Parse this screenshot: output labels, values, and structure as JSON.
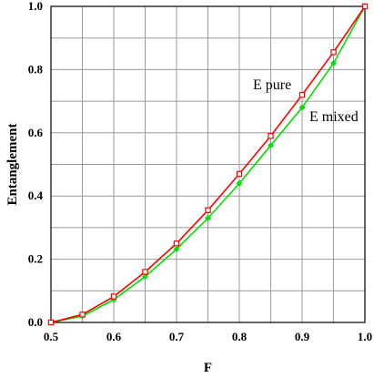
{
  "chart_data": {
    "type": "line",
    "xlabel": "F",
    "ylabel": "Entanglement",
    "xlim": [
      0.5,
      1.0
    ],
    "ylim": [
      0.0,
      1.0
    ],
    "x_ticks": [
      "0.5",
      "0.6",
      "0.7",
      "0.8",
      "0.9",
      "1.0"
    ],
    "y_ticks": [
      "0.0",
      "0.2",
      "0.4",
      "0.6",
      "0.8",
      "1.0"
    ],
    "grid": true,
    "x": [
      0.5,
      0.55,
      0.6,
      0.65,
      0.7,
      0.75,
      0.8,
      0.85,
      0.9,
      0.95,
      1.0
    ],
    "series": [
      {
        "name": "E pure",
        "color": "#ff0000",
        "marker": "open-square",
        "values": [
          0.0,
          0.025,
          0.082,
          0.16,
          0.25,
          0.355,
          0.47,
          0.59,
          0.72,
          0.855,
          1.0
        ]
      },
      {
        "name": "E mixed",
        "color": "#00e000",
        "marker": "filled-diamond",
        "values": [
          0.0,
          0.02,
          0.072,
          0.145,
          0.232,
          0.33,
          0.44,
          0.56,
          0.68,
          0.82,
          1.0
        ]
      }
    ],
    "annotations": [
      "E pure",
      "E mixed"
    ]
  }
}
